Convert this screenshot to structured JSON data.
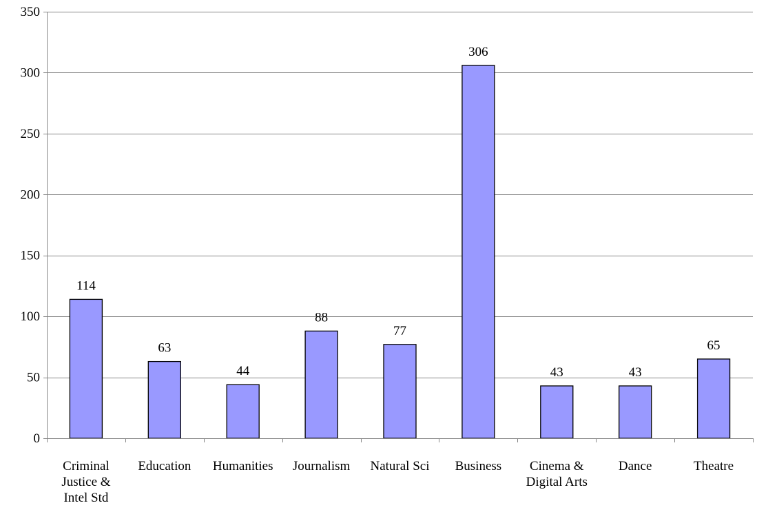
{
  "chart_data": {
    "type": "bar",
    "title": "",
    "xlabel": "",
    "ylabel": "",
    "categories": [
      [
        "Criminal",
        "Justice &",
        "Intel Std"
      ],
      [
        "Education"
      ],
      [
        "Humanities"
      ],
      [
        "Journalism"
      ],
      [
        "Natural Sci"
      ],
      [
        "Business"
      ],
      [
        "Cinema &",
        "Digital Arts"
      ],
      [
        "Dance"
      ],
      [
        "Theatre"
      ]
    ],
    "values": [
      114,
      63,
      44,
      88,
      77,
      306,
      43,
      43,
      65
    ],
    "ylim": [
      0,
      350
    ],
    "yticks": [
      0,
      50,
      100,
      150,
      200,
      250,
      300,
      350
    ],
    "grid": true,
    "legend": "none",
    "bar_color": "#9999ff",
    "bar_edge_color": "#000000",
    "grid_color": "#868686"
  }
}
